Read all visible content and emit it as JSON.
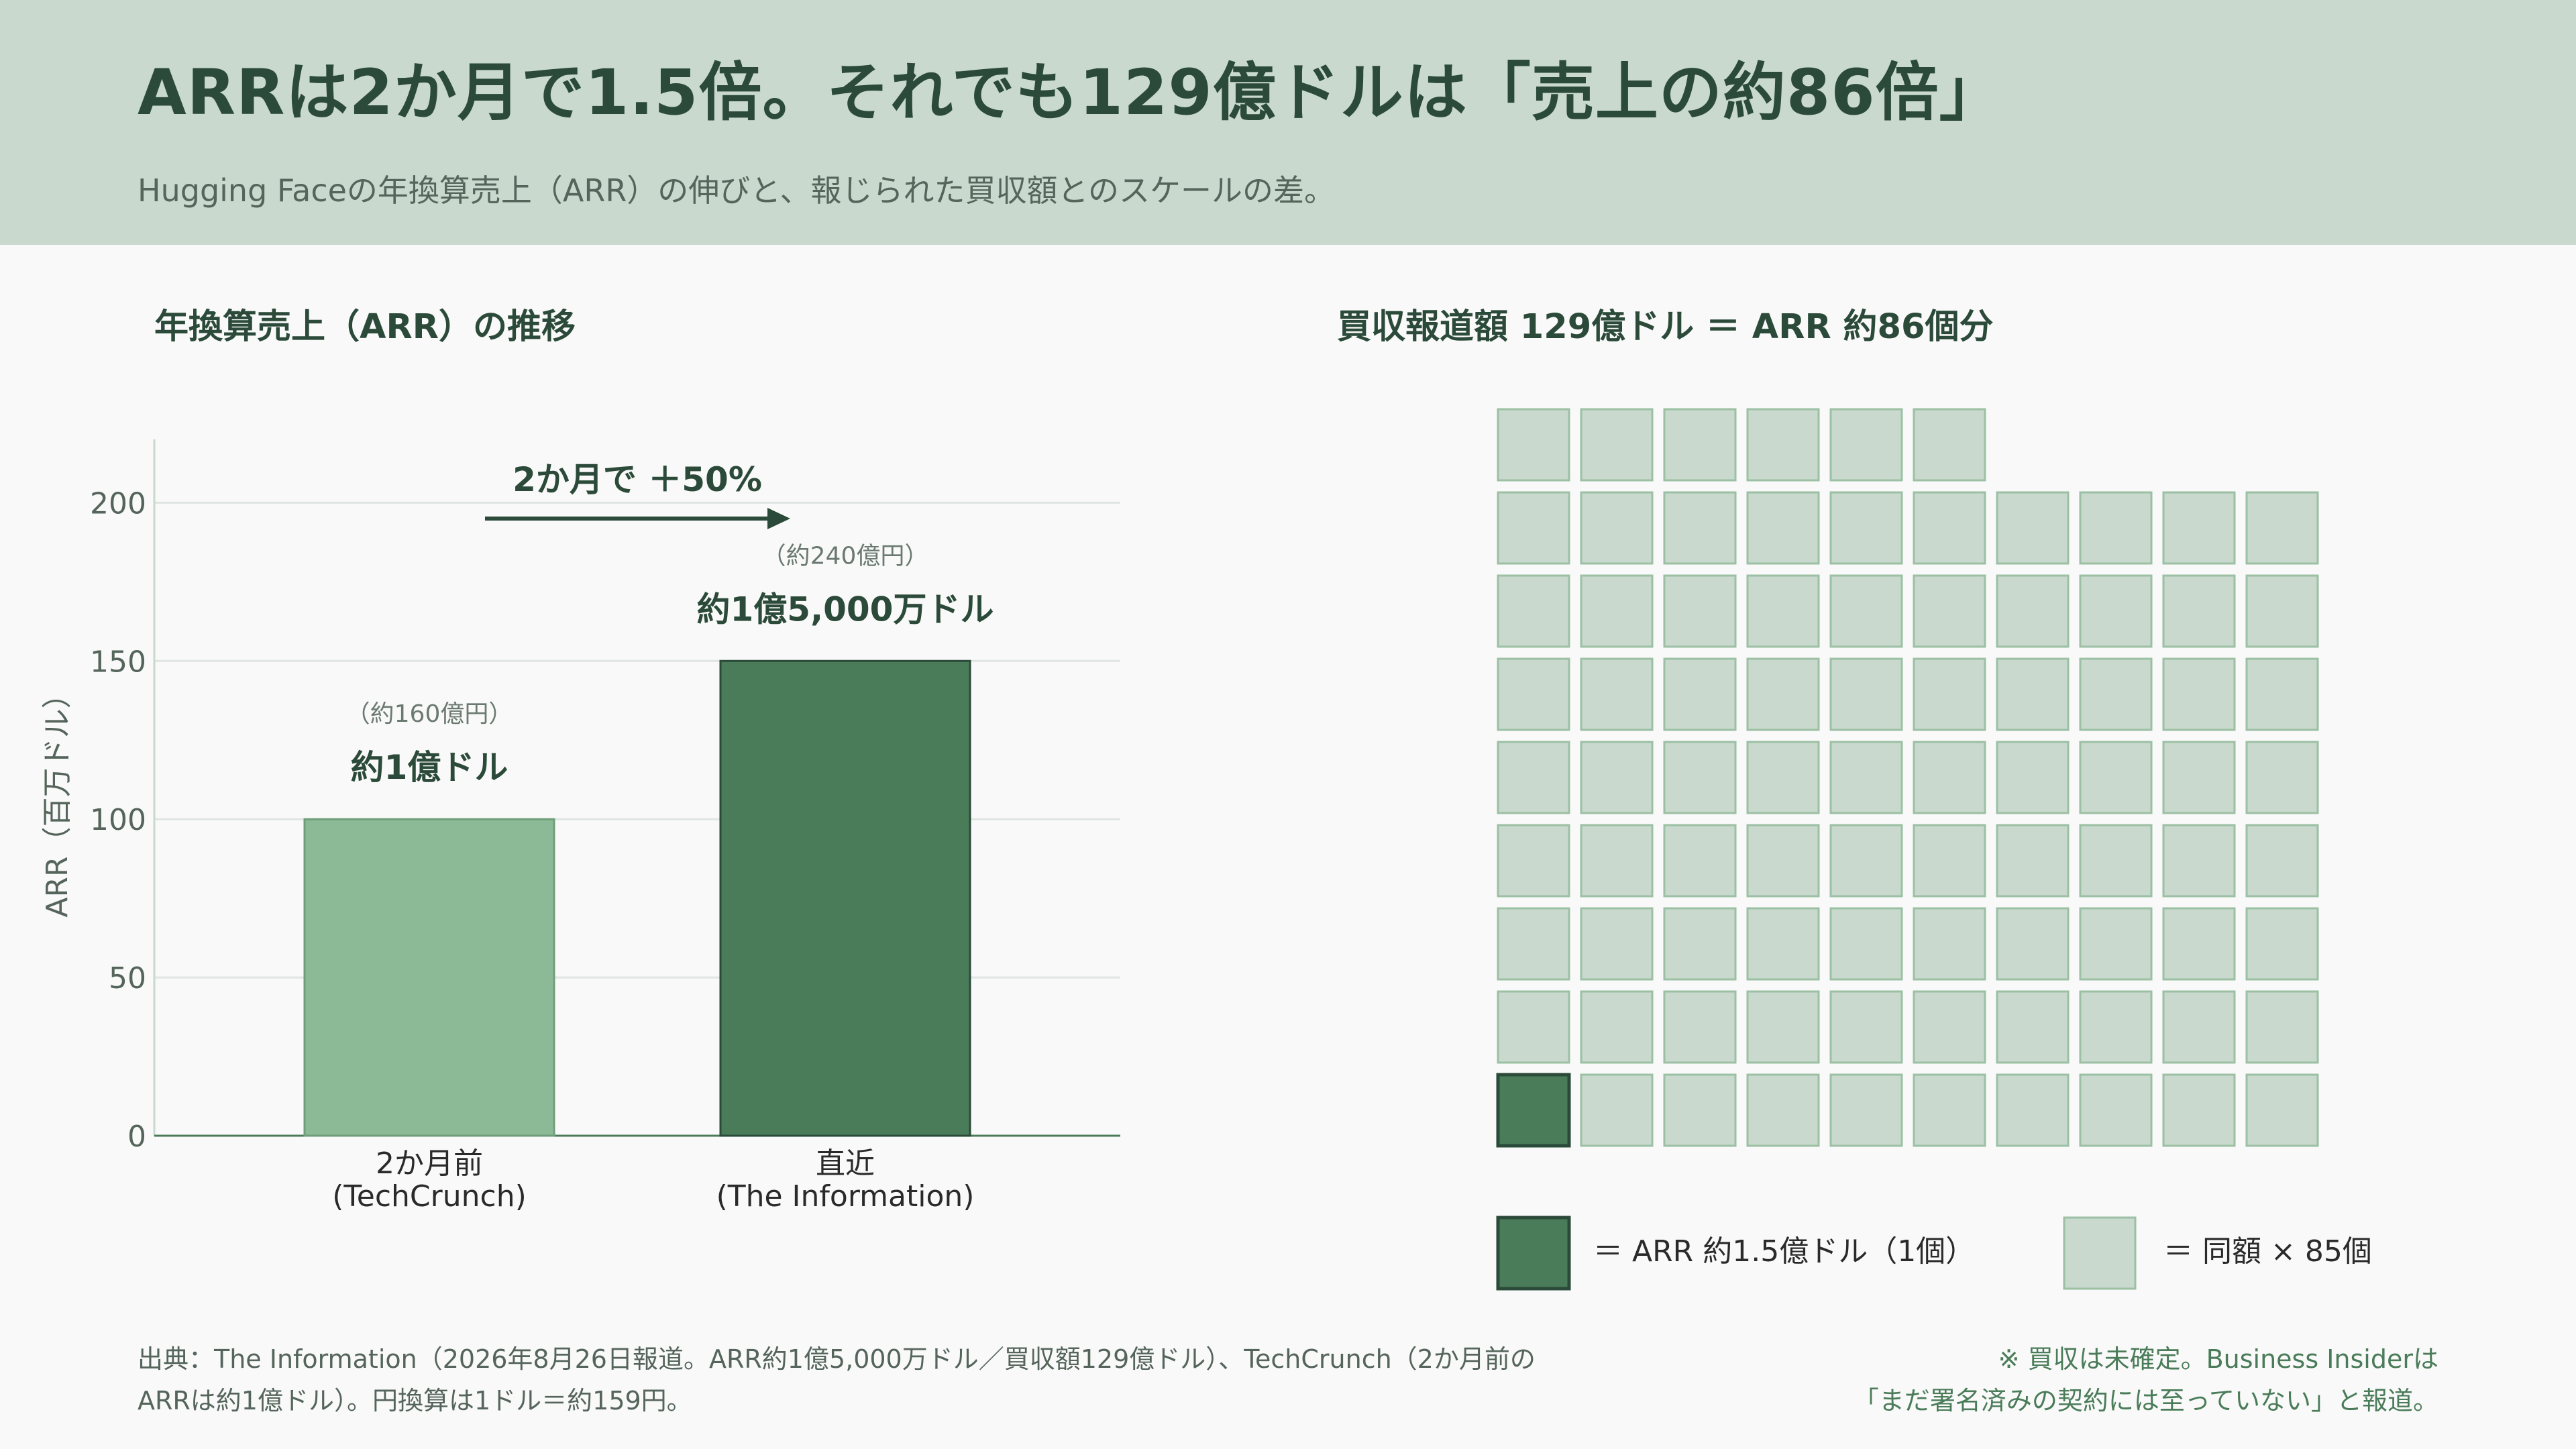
{
  "header": {
    "title": "ARRは2か月で1.5倍。それでも129億ドルは「売上の約86倍」",
    "subtitle": "Hugging Faceの年換算売上（ARR）の伸びと、報じられた買収額とのスケールの差。"
  },
  "left_panel": {
    "title": "年換算売上（ARR）の推移"
  },
  "right_panel": {
    "title": "買収報道額 129億ドル ＝ ARR 約86個分"
  },
  "colors": {
    "light_bar": "#8cb996",
    "dark_bar": "#4a7c59",
    "header_bg": "#c9d9cd",
    "square_fill": "#c9d9cd",
    "square_stroke": "#9cc0a4",
    "text_dark": "#2b4a39"
  },
  "chart_data": [
    {
      "type": "bar",
      "title": "年換算売上（ARR）の推移",
      "ylabel": "ARR（百万ドル）",
      "ylim": [
        0,
        220
      ],
      "yticks": [
        0,
        50,
        100,
        150,
        200
      ],
      "categories": [
        [
          "2か月前",
          "(TechCrunch)"
        ],
        [
          "直近",
          "(The Information)"
        ]
      ],
      "values": [
        100,
        150
      ],
      "data_labels": [
        "約1億ドル",
        "約1億5,000万ドル"
      ],
      "data_sublabels": [
        "（約160億円）",
        "（約240億円）"
      ],
      "annotation": "2か月で ＋50%",
      "grid": true
    },
    {
      "type": "waffle",
      "title": "買収報道額 129億ドル ＝ ARR 約86個分",
      "total": 86,
      "highlight": 1,
      "columns": 10,
      "legend": [
        {
          "label": "＝ ARR 約1.5億ドル（1個）",
          "value": 1
        },
        {
          "label": "＝ 同額 × 85個",
          "value": 85
        }
      ]
    }
  ],
  "footer": {
    "source": "出典：The Information（2026年8月26日報道。ARR約1億5,000万ドル／買収額129億ドル）、TechCrunch（2か月前のARRは約1億ドル）。円換算は1ドル＝約159円。",
    "note_line1": "※ 買収は未確定。Business Insiderは",
    "note_line2": "「まだ署名済みの契約には至っていない」と報道。"
  }
}
